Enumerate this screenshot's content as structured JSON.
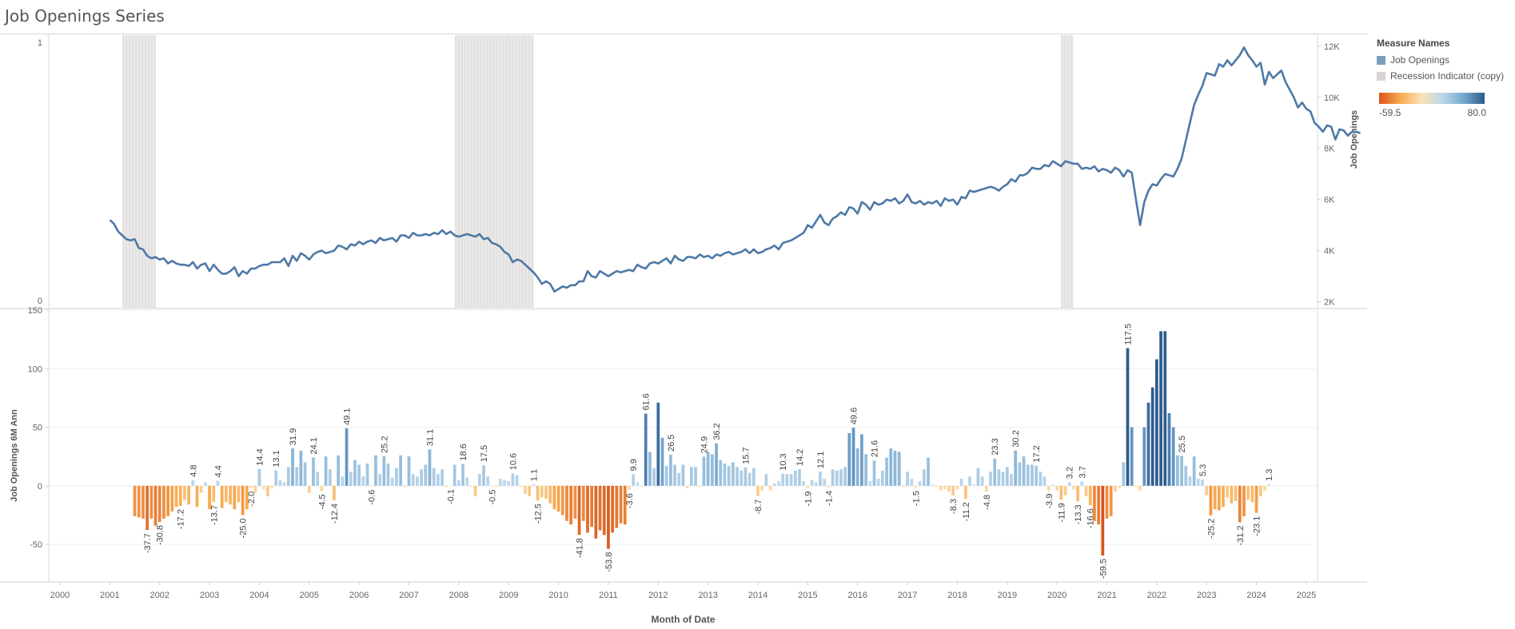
{
  "title": "Job Openings Series",
  "legend": {
    "title": "Measure Names",
    "items": [
      {
        "label": "Job Openings",
        "color": "#7b9ebf"
      },
      {
        "label": "Recession Indicator (copy)",
        "color": "#d8d4d2"
      }
    ],
    "ramp_min": "-59.5",
    "ramp_max": "80.0",
    "ramp_colors": [
      "#e0531b",
      "#f7a94f",
      "#fbe3b6",
      "#bcd7ea",
      "#74a9cf",
      "#2d5c8e"
    ]
  },
  "chart_data": [
    {
      "type": "line",
      "name": "Job Openings",
      "xlabel": "",
      "left_axis": {
        "ticks": [
          "1",
          "0"
        ],
        "ylim": [
          0,
          1
        ]
      },
      "ylabel_right": "Job Openings",
      "right_ticks": [
        "12K",
        "10K",
        "8K",
        "6K",
        "4K",
        "2K"
      ],
      "ylim_right": [
        1800,
        12400
      ],
      "recessions": [
        [
          2001.25,
          2001.92
        ],
        [
          2007.92,
          2009.5
        ],
        [
          2020.08,
          2020.33
        ]
      ],
      "line_color": "#4e79a7",
      "series": [
        {
          "name": "Job Openings",
          "x_start": 2001.0,
          "x_step": 0.08333,
          "values": [
            5200,
            5050,
            4750,
            4600,
            4450,
            4400,
            4450,
            4100,
            4050,
            3800,
            3700,
            3750,
            3650,
            3700,
            3500,
            3600,
            3500,
            3450,
            3450,
            3400,
            3550,
            3300,
            3450,
            3500,
            3200,
            3450,
            3250,
            3100,
            3100,
            3200,
            3350,
            3000,
            3200,
            3100,
            3300,
            3300,
            3400,
            3450,
            3450,
            3550,
            3550,
            3550,
            3700,
            3400,
            3800,
            3600,
            3900,
            3800,
            3650,
            3850,
            3950,
            4000,
            3900,
            3950,
            4000,
            4200,
            4150,
            4050,
            4250,
            4200,
            4350,
            4250,
            4350,
            4400,
            4300,
            4500,
            4400,
            4450,
            4500,
            4350,
            4600,
            4600,
            4500,
            4700,
            4600,
            4600,
            4650,
            4600,
            4700,
            4650,
            4800,
            4650,
            4750,
            4600,
            4550,
            4600,
            4650,
            4600,
            4550,
            4650,
            4450,
            4500,
            4300,
            4250,
            4150,
            3950,
            3850,
            3550,
            3650,
            3600,
            3450,
            3300,
            3150,
            2950,
            2700,
            2800,
            2700,
            2400,
            2500,
            2600,
            2550,
            2650,
            2650,
            2800,
            2800,
            3200,
            3000,
            2950,
            3200,
            3100,
            3000,
            3100,
            3200,
            3150,
            3200,
            3250,
            3200,
            3450,
            3350,
            3300,
            3500,
            3550,
            3500,
            3600,
            3700,
            3500,
            3800,
            3650,
            3600,
            3750,
            3750,
            3700,
            3850,
            3750,
            3800,
            3700,
            3850,
            3800,
            3900,
            3950,
            3850,
            3900,
            3950,
            4050,
            3900,
            4050,
            3900,
            3950,
            4050,
            4100,
            4200,
            4050,
            4300,
            4350,
            4400,
            4500,
            4600,
            4700,
            5000,
            4900,
            5150,
            5400,
            5100,
            5000,
            5250,
            5350,
            5500,
            5400,
            5700,
            5650,
            5450,
            5900,
            5800,
            5600,
            5900,
            5800,
            5850,
            6000,
            5950,
            6050,
            5850,
            5950,
            6200,
            5900,
            5850,
            5950,
            5800,
            5900,
            5850,
            5950,
            5750,
            6050,
            5950,
            6000,
            5800,
            6100,
            6050,
            6350,
            6300,
            6350,
            6400,
            6450,
            6500,
            6450,
            6350,
            6500,
            6600,
            6800,
            6700,
            6950,
            6950,
            7050,
            7250,
            7200,
            7200,
            7350,
            7300,
            7500,
            7400,
            7300,
            7500,
            7450,
            7400,
            7400,
            7200,
            7250,
            7200,
            7300,
            7100,
            7200,
            7150,
            7050,
            7250,
            7150,
            6900,
            7150,
            7050,
            6000,
            5000,
            5900,
            6350,
            6600,
            6550,
            6800,
            7000,
            6950,
            6900,
            7200,
            7600,
            8300,
            9000,
            9700,
            10100,
            10450,
            10950,
            10900,
            10850,
            11300,
            11200,
            11450,
            11250,
            11450,
            11650,
            11950,
            11650,
            11450,
            11200,
            11350,
            10500,
            11000,
            10750,
            10900,
            11050,
            10600,
            10300,
            10000,
            9600,
            9800,
            9550,
            9450,
            9000,
            8850,
            8650,
            8900,
            8850,
            8350,
            8750,
            8700,
            8500,
            8650,
            8650,
            8600
          ]
        }
      ]
    },
    {
      "type": "bar",
      "name": "Job Openings 6M Ann",
      "ylabel": "Job Openings 6M Ann",
      "xlabel": "Month of Date",
      "y_ticks": [
        "150",
        "100",
        "50",
        "0",
        "-50"
      ],
      "ylim": [
        -82,
        150
      ],
      "x_ticks": [
        "2000",
        "2001",
        "2002",
        "2003",
        "2004",
        "2005",
        "2006",
        "2007",
        "2008",
        "2009",
        "2010",
        "2011",
        "2012",
        "2013",
        "2014",
        "2015",
        "2016",
        "2017",
        "2018",
        "2019",
        "2020",
        "2021",
        "2022",
        "2023",
        "2024",
        "2025"
      ],
      "xlim": [
        2000,
        2025
      ],
      "x_start": 2001.5,
      "x_step": 0.08333,
      "values": [
        -26,
        -27,
        -28,
        -37.7,
        -28,
        -34,
        -30.8,
        -28,
        -26,
        -22,
        -18,
        -17.2,
        -12,
        -16,
        4.8,
        -18,
        -6,
        3,
        -20,
        -13.7,
        4.4,
        -19,
        -14,
        -16,
        -20,
        -14,
        -25.0,
        -20,
        -2,
        -6,
        14.4,
        -3,
        -9,
        -2,
        13.1,
        5,
        3,
        16,
        31.9,
        16,
        30,
        20,
        -6,
        24.1,
        12,
        -4.5,
        25,
        14,
        -12.4,
        26,
        8,
        49.1,
        12,
        22,
        18,
        8,
        19,
        -0.6,
        26,
        10,
        25.2,
        19,
        7,
        15,
        26,
        -1,
        25.2,
        10,
        8,
        14,
        18,
        31.1,
        15,
        10,
        14,
        -1,
        -0.1,
        18,
        5,
        18.6,
        7,
        -1,
        -9,
        10,
        17.5,
        8,
        -0.5,
        -1,
        6,
        5,
        4,
        10.6,
        9,
        -1,
        -7,
        -9,
        1.1,
        -12.5,
        -10,
        -11,
        -15,
        -20,
        -22,
        -25,
        -30,
        -33,
        -28,
        -41.8,
        -30,
        -40,
        -35,
        -45,
        -38,
        -42,
        -53.8,
        -40,
        -36,
        -32,
        -33,
        -3.6,
        9.9,
        3,
        -1,
        61.6,
        29,
        15,
        71,
        41,
        17,
        26.5,
        18,
        11,
        18,
        -2.0,
        16,
        16,
        -1,
        24.9,
        29,
        27,
        36.2,
        22,
        19,
        17,
        20,
        16,
        13,
        15.7,
        11,
        15,
        -8.7,
        -4,
        10,
        -4,
        2,
        4,
        10.3,
        10,
        10,
        13,
        14.2,
        4,
        -1.9,
        5,
        3,
        12.1,
        6,
        -1.4,
        14,
        13,
        14,
        16,
        45,
        49.6,
        32,
        44,
        27,
        4,
        21.6,
        6,
        13,
        24,
        31.9,
        30,
        29,
        -1,
        12,
        6,
        -1.5,
        4,
        14,
        24.1,
        1,
        -1,
        -4,
        -3,
        -5,
        -8.3,
        -3,
        6,
        -11.2,
        8,
        1,
        15,
        8,
        -4.8,
        12,
        23.3,
        14,
        12,
        16,
        10,
        30.2,
        20,
        25,
        18,
        18,
        17.2,
        12,
        8,
        -3.9,
        1,
        -4,
        -11.9,
        -8,
        3.2,
        -3,
        -13.3,
        3.7,
        -9,
        -16.6,
        -30,
        -33,
        -59.5,
        -28,
        -26,
        -5,
        -2,
        20,
        117.5,
        50,
        -1,
        -4,
        50,
        71,
        84,
        108,
        132,
        132,
        62,
        50,
        26,
        25.5,
        17,
        8,
        25,
        6,
        5.3,
        -8,
        -25.2,
        -20,
        -21,
        -18,
        -10,
        -15,
        -13,
        -31.2,
        -26,
        -12,
        -14,
        -23.1,
        -9,
        -4,
        1.3
      ],
      "labels": {
        "-37.7": 1,
        "-30.8": 1,
        "4.8": 1,
        "-17.2": 1,
        "-13.7": 1,
        "4.4": 1,
        "14.4": 1,
        "-25.0": 1,
        "13.1": 1,
        "31.9": 1,
        "24.1": 1,
        "-4.5": 1,
        "49.1": 1,
        "-12.4": 1,
        "25.2": 1,
        "-0.6": 1,
        "31.1": 1,
        "18.6": 1,
        "-0.1": 1,
        "17.5": 1,
        "-0.5": 1,
        "10.6": 1,
        "1.1": 1,
        "-12.5": 1,
        "-41.8": 1,
        "-53.8": 1,
        "9.9": 1,
        "-3.6": 1,
        "61.6": 1,
        "26.5": 1,
        "36.2": 1,
        "24.9": 1,
        "-2.0": 1,
        "15.7": 1,
        "-8.7": 1,
        "10.3": 1,
        "14.2": 1,
        "-1.9": 1,
        "12.1": 1,
        "-1.4": 1,
        "49.6": 1,
        "21.6": 1,
        "-1.5": 1,
        "-8.3": 1,
        "-11.2": 1,
        "-4.8": 1,
        "23.3": 1,
        "30.2": 1,
        "17.2": 1,
        "-3.9": 1,
        "-11.9": 1,
        "3.2": 1,
        "-13.3": 1,
        "3.7": 1,
        "-16.6": 1,
        "-59.5": 1,
        "117.5": 1,
        "25.5": 1,
        "5.3": 1,
        "-25.2": 1,
        "-31.2": 1,
        "-23.1": 1,
        "1.3": 1
      }
    }
  ]
}
